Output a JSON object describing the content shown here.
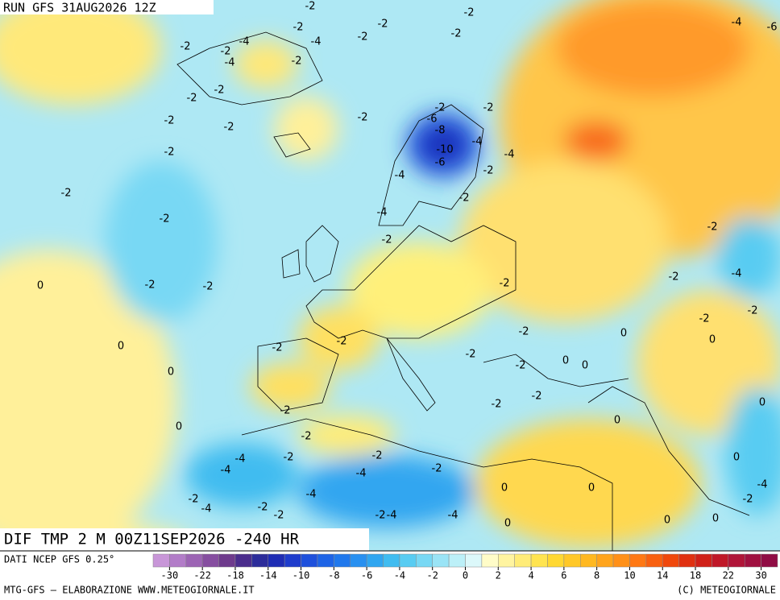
{
  "header": {
    "run": "RUN GFS 31AUG2026 12Z"
  },
  "map_title": "DIF TMP 2 M 00Z11SEP2026 -240 HR",
  "source": "DATI NCEP GFS 0.25°",
  "footer": {
    "left": "MTG-GFS — ELABORAZIONE WWW.METEOGIORNALE.IT",
    "right": "(C) METEOGIORNALE"
  },
  "colorbar": {
    "colors": [
      "#c896d8",
      "#b27cc8",
      "#9c64b4",
      "#864ea0",
      "#6e3a8c",
      "#4a2c8c",
      "#2c2c9a",
      "#1e2cb4",
      "#1e3ccc",
      "#1e50dc",
      "#1e64e6",
      "#2078ec",
      "#2890f0",
      "#30a6f0",
      "#40bcf0",
      "#58ccf2",
      "#78d8f4",
      "#9ae4f6",
      "#bcf0f8",
      "#dcf8fa",
      "#fffcc8",
      "#fff4a0",
      "#ffec78",
      "#ffe450",
      "#ffd832",
      "#ffc828",
      "#ffb820",
      "#ffa41c",
      "#ff9018",
      "#ff7814",
      "#f86010",
      "#f0480c",
      "#e03010",
      "#d02018",
      "#c01828",
      "#b01438",
      "#a01040",
      "#900c44"
    ],
    "ticks": [
      -30,
      -22,
      -18,
      -14,
      -10,
      -8,
      -6,
      -4,
      -2,
      0,
      2,
      4,
      6,
      8,
      10,
      14,
      18,
      22,
      30
    ]
  },
  "contour_labels": [
    -2,
    -2,
    -2,
    -2,
    -2,
    -2,
    -4,
    -4,
    -2,
    -2,
    -4,
    -2,
    -4,
    -6,
    -2,
    -2,
    -2,
    -2,
    -2,
    -2,
    -2,
    -6,
    -8,
    -4,
    -10,
    -6,
    -4,
    -2,
    -4,
    -2,
    -2,
    -2,
    -4,
    -2,
    -2,
    -2,
    0,
    -2,
    -2,
    -2,
    -2,
    -4,
    0,
    -2,
    -2,
    -2,
    0,
    -2,
    0,
    -2,
    -2,
    0,
    0,
    0,
    -2,
    -2,
    -2,
    -2,
    0,
    -2,
    -4,
    -2,
    -2,
    -2,
    -4,
    -4,
    -4,
    -2,
    -4,
    0,
    0,
    -2,
    -4,
    -4,
    0,
    0,
    0,
    -2,
    -2,
    0,
    0,
    0,
    -2,
    -4
  ]
}
